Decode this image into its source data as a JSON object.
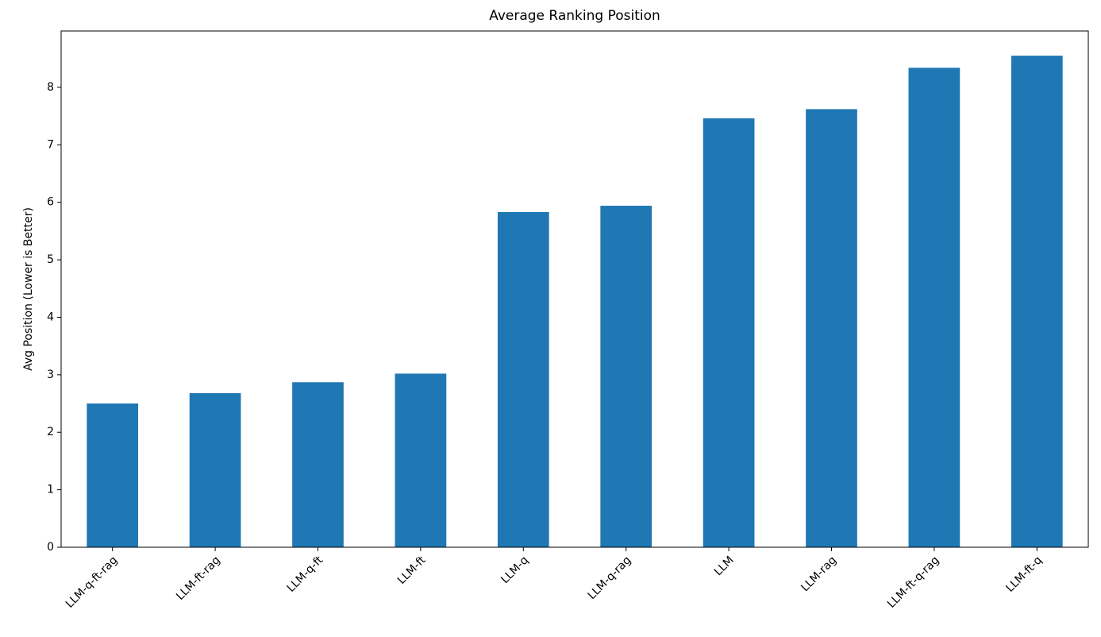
{
  "chart_data": {
    "type": "bar",
    "title": "Average Ranking Position",
    "y_label": "Avg Position (Lower is Better)",
    "categories": [
      "LLM-q-ft-rag",
      "LLM-ft-rag",
      "LLM-q-ft",
      "LLM-ft",
      "LLM-q",
      "LLM-q-rag",
      "LLM",
      "LLM-rag",
      "LLM-ft-q-rag",
      "LLM-ft-q"
    ],
    "values": [
      2.5,
      2.68,
      2.87,
      3.02,
      5.83,
      5.94,
      7.46,
      7.62,
      8.34,
      8.55
    ],
    "color": "#1f77b4",
    "ylim": [
      0,
      8.98
    ],
    "yticks": [
      0,
      1,
      2,
      3,
      4,
      5,
      6,
      7,
      8
    ],
    "grid": false
  }
}
